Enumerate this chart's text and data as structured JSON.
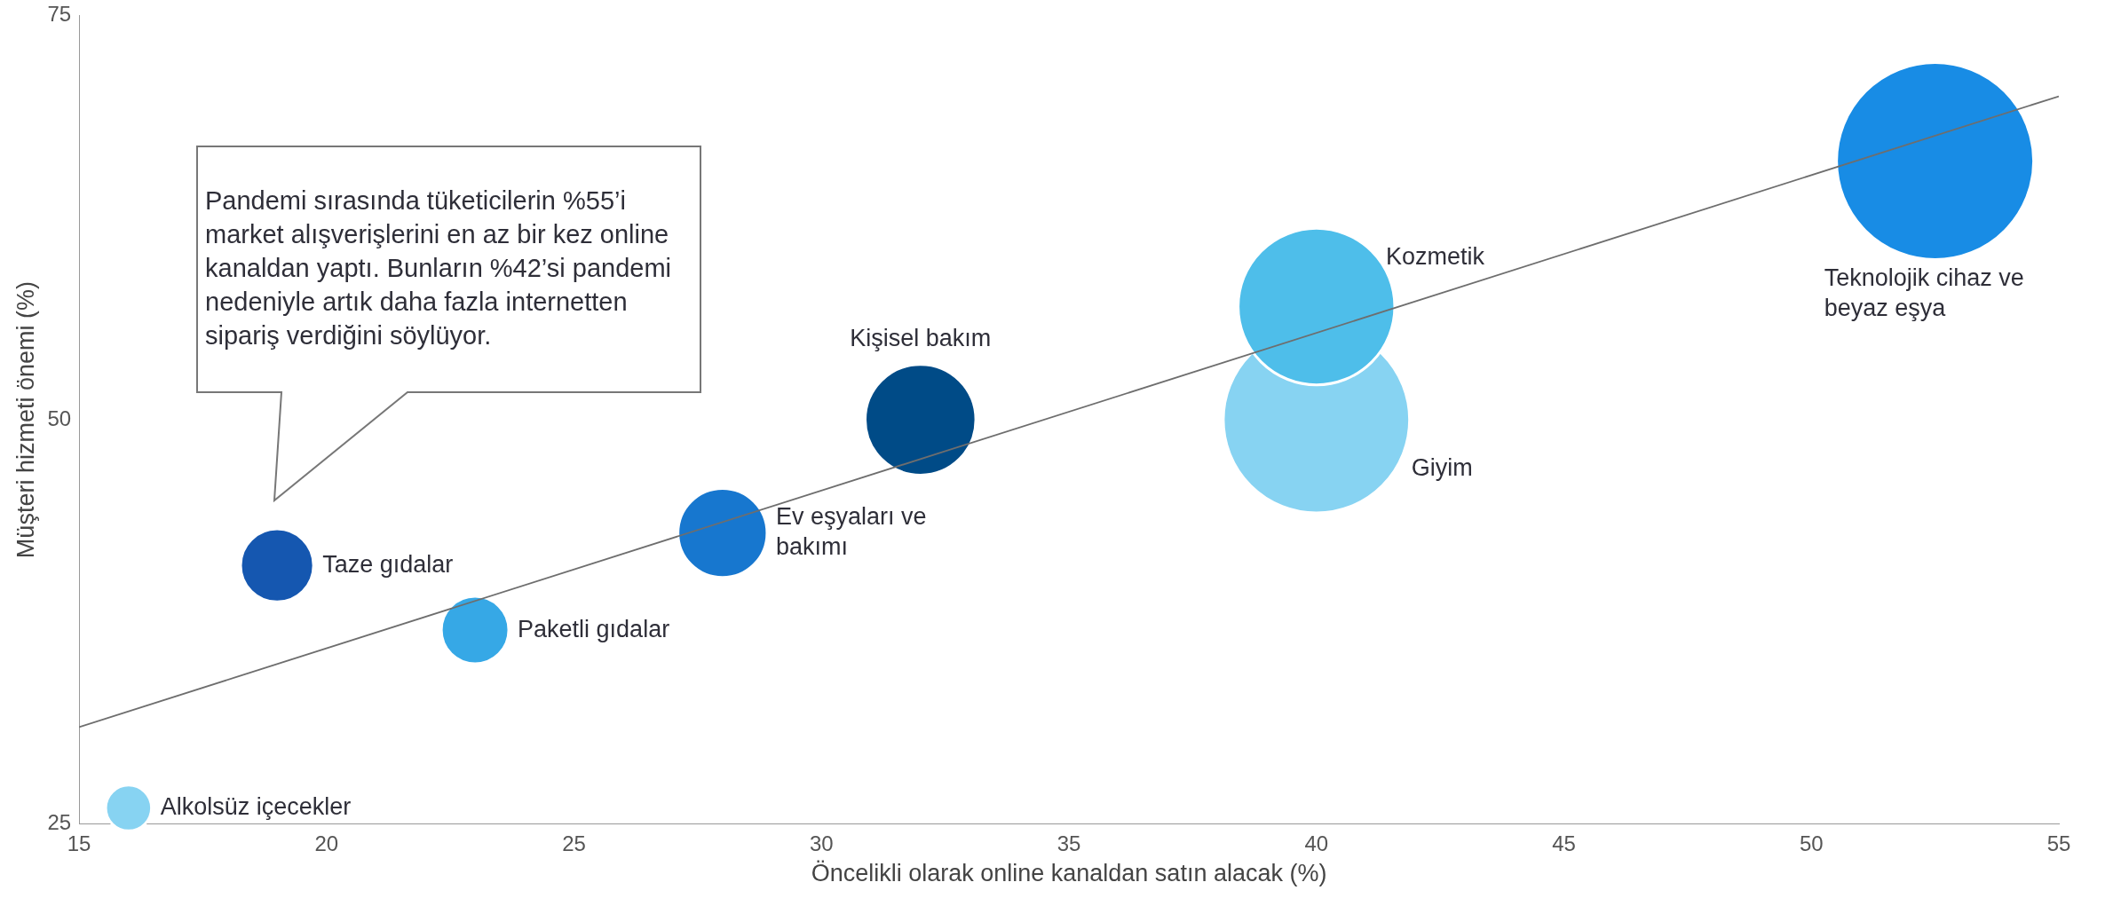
{
  "chart_data": {
    "type": "bubble",
    "xlabel": "Öncelikli olarak online kanaldan satın alacak (%)",
    "ylabel": "Müşteri hizmeti önemi (%)",
    "xlim": [
      15,
      55
    ],
    "xticks": [
      15,
      20,
      25,
      30,
      35,
      40,
      45,
      50,
      55
    ],
    "ylim": [
      25,
      75
    ],
    "yticks": [
      25,
      50,
      75
    ],
    "grid": false,
    "legend": false,
    "annotations": [
      "Pandemi sırasında tüketicilerin %55’i market alışverişlerini en az bir kez online kanaldan yaptı. Bunların %42’si pandemi nedeniyle artık daha fazla internetten sipariş verdiğini söylüyor."
    ],
    "series": [
      {
        "name": "Alkolsüz içecekler",
        "color": "#87d3f2",
        "x": [
          16
        ],
        "values": [
          26
        ],
        "sizes": [
          0.054
        ]
      },
      {
        "name": "Taze gıdalar",
        "color": "#1557b0",
        "x": [
          19
        ],
        "values": [
          41
        ],
        "sizes": [
          0.137
        ]
      },
      {
        "name": "Paketli gıdalar",
        "color": "#36a8e6",
        "x": [
          23
        ],
        "values": [
          37
        ],
        "sizes": [
          0.117
        ]
      },
      {
        "name": "Ev eşyaları ve bakımı",
        "color": "#1777cf",
        "x": [
          28
        ],
        "values": [
          43
        ],
        "sizes": [
          0.204
        ]
      },
      {
        "name": "Kişisel bakım",
        "color": "#004b87",
        "x": [
          32
        ],
        "values": [
          50
        ],
        "sizes": [
          0.315
        ]
      },
      {
        "name": "Giyim",
        "color": "#87d3f2",
        "x": [
          40
        ],
        "values": [
          50
        ],
        "sizes": [
          0.893
        ]
      },
      {
        "name": "Kozmetik",
        "color": "#4ebeea",
        "x": [
          40
        ],
        "values": [
          57
        ],
        "sizes": [
          0.631
        ]
      },
      {
        "name": "Teknolojik cihaz ve beyaz eşya",
        "color": "#188ce5",
        "x": [
          52.5
        ],
        "values": [
          66
        ],
        "sizes": [
          1
        ]
      },
      {
        "type": "line",
        "color": "#6e6e6e",
        "x": [
          15,
          55
        ],
        "values": [
          31,
          70
        ],
        "marker": "none"
      }
    ]
  }
}
